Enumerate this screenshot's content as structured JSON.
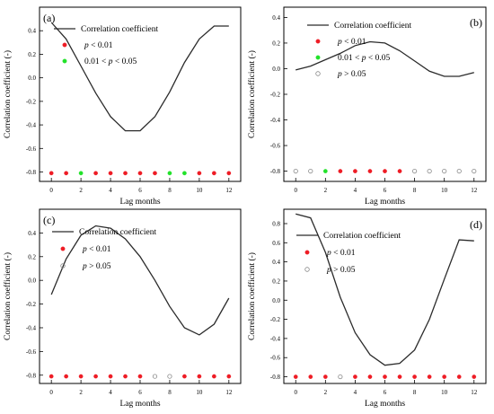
{
  "chart_data": [
    {
      "panel_label": "(a)",
      "type": "line",
      "xlabel": "Lag months",
      "ylabel": "Correlation coefficient (-)",
      "xlim": [
        -0.8,
        12.8
      ],
      "ylim": [
        -0.88,
        0.6
      ],
      "xticks": [
        0,
        2,
        4,
        6,
        8,
        10,
        12
      ],
      "yticks": [
        -0.8,
        -0.6,
        -0.4,
        -0.2,
        0.0,
        0.2,
        0.4
      ],
      "yticklabels": [
        "-0.8",
        "-0.6",
        "-0.4",
        "-0.2",
        "0.0",
        "0.2",
        "0.4"
      ],
      "legend_position": "top",
      "legend": [
        {
          "type": "line",
          "prefix": "",
          "italic": "",
          "suffix": "Correlation coefficient"
        },
        {
          "type": "marker",
          "color": "#ee1c25",
          "filled": true,
          "prefix": "",
          "italic": "p",
          "suffix": " < 0.01"
        },
        {
          "type": "marker",
          "color": "#22e22a",
          "filled": true,
          "prefix": "0.01 < ",
          "italic": "p",
          "suffix": " < 0.05"
        }
      ],
      "x": [
        0,
        1,
        2,
        3,
        4,
        5,
        6,
        7,
        8,
        9,
        10,
        11,
        12
      ],
      "correlation": [
        0.47,
        0.33,
        0.1,
        -0.13,
        -0.33,
        -0.45,
        -0.45,
        -0.33,
        -0.12,
        0.13,
        0.33,
        0.44,
        0.44
      ],
      "significance_y": -0.81,
      "significance": [
        "p<0.01",
        "p<0.01",
        "0.01<p<0.05",
        "p<0.01",
        "p<0.01",
        "p<0.01",
        "p<0.01",
        "p<0.01",
        "0.01<p<0.05",
        "0.01<p<0.05",
        "p<0.01",
        "p<0.01",
        "p<0.01"
      ]
    },
    {
      "panel_label": "(b)",
      "type": "line",
      "xlabel": "Lag months",
      "ylabel": "Correlation coefficient (-)",
      "xlim": [
        -0.8,
        12.8
      ],
      "ylim": [
        -0.88,
        0.48
      ],
      "xticks": [
        0,
        2,
        4,
        6,
        8,
        10,
        12
      ],
      "yticks": [
        -0.8,
        -0.6,
        -0.4,
        -0.2,
        0.0,
        0.2,
        0.4
      ],
      "yticklabels": [
        "-0.8",
        "-0.6",
        "-0.4",
        "-0.2",
        "0.0",
        "0.2",
        "0.4"
      ],
      "legend_position": "top",
      "legend": [
        {
          "type": "line",
          "prefix": "",
          "italic": "",
          "suffix": "Correlation coefficient"
        },
        {
          "type": "marker",
          "color": "#ee1c25",
          "filled": true,
          "prefix": "",
          "italic": "p",
          "suffix": " < 0.01"
        },
        {
          "type": "marker",
          "color": "#22e22a",
          "filled": true,
          "prefix": "0.01 < ",
          "italic": "p",
          "suffix": " < 0.05"
        },
        {
          "type": "marker",
          "color": "#888888",
          "filled": false,
          "prefix": "",
          "italic": "p",
          "suffix": " > 0.05"
        }
      ],
      "x": [
        0,
        1,
        2,
        3,
        4,
        5,
        6,
        7,
        8,
        9,
        10,
        11,
        12
      ],
      "correlation": [
        -0.01,
        0.02,
        0.07,
        0.12,
        0.18,
        0.21,
        0.2,
        0.14,
        0.06,
        -0.02,
        -0.06,
        -0.06,
        -0.03
      ],
      "significance_y": -0.8,
      "significance": [
        "p>0.05",
        "p>0.05",
        "0.01<p<0.05",
        "p<0.01",
        "p<0.01",
        "p<0.01",
        "p<0.01",
        "p<0.01",
        "p>0.05",
        "p>0.05",
        "p>0.05",
        "p>0.05",
        "p>0.05"
      ]
    },
    {
      "panel_label": "(c)",
      "type": "line",
      "xlabel": "Lag months",
      "ylabel": "Correlation coefficient (-)",
      "xlim": [
        -0.8,
        12.8
      ],
      "ylim": [
        -0.87,
        0.6
      ],
      "xticks": [
        0,
        2,
        4,
        6,
        8,
        10,
        12
      ],
      "yticks": [
        -0.8,
        -0.6,
        -0.4,
        -0.2,
        0.0,
        0.2,
        0.4
      ],
      "yticklabels": [
        "-0.8",
        "-0.6",
        "-0.4",
        "-0.2",
        "0.0",
        "0.2",
        "0.4"
      ],
      "legend_position": "top",
      "legend": [
        {
          "type": "line",
          "prefix": "",
          "italic": "",
          "suffix": "Correlation coefficient"
        },
        {
          "type": "marker",
          "color": "#ee1c25",
          "filled": true,
          "prefix": "",
          "italic": "p",
          "suffix": " < 0.01"
        },
        {
          "type": "marker",
          "color": "#888888",
          "filled": false,
          "prefix": "",
          "italic": "p",
          "suffix": " > 0.05"
        }
      ],
      "x": [
        0,
        1,
        2,
        3,
        4,
        5,
        6,
        7,
        8,
        9,
        10,
        11,
        12
      ],
      "correlation": [
        -0.12,
        0.18,
        0.38,
        0.46,
        0.44,
        0.35,
        0.2,
        0.0,
        -0.22,
        -0.4,
        -0.46,
        -0.37,
        -0.15
      ],
      "significance_y": -0.81,
      "significance": [
        "p<0.01",
        "p<0.01",
        "p<0.01",
        "p<0.01",
        "p<0.01",
        "p<0.01",
        "p<0.01",
        "p>0.05",
        "p>0.05",
        "p<0.01",
        "p<0.01",
        "p<0.01",
        "p<0.01"
      ]
    },
    {
      "panel_label": "(d)",
      "type": "line",
      "xlabel": "Lag months",
      "ylabel": "Correlation coefficient (-)",
      "xlim": [
        -0.8,
        12.8
      ],
      "ylim": [
        -0.87,
        0.95
      ],
      "xticks": [
        0,
        2,
        4,
        6,
        8,
        10,
        12
      ],
      "yticks": [
        -0.8,
        -0.6,
        -0.4,
        -0.2,
        0.0,
        0.2,
        0.4,
        0.6,
        0.8
      ],
      "yticklabels": [
        "-0.8",
        "-0.6",
        "-0.4",
        "-0.2",
        "0.0",
        "0.2",
        "0.4",
        "0.6",
        "0.8"
      ],
      "legend_position": "top",
      "legend": [
        {
          "type": "line",
          "prefix": "",
          "italic": "",
          "suffix": "Correlation coefficient"
        },
        {
          "type": "marker",
          "color": "#ee1c25",
          "filled": true,
          "prefix": "",
          "italic": "p",
          "suffix": " < 0.01"
        },
        {
          "type": "marker",
          "color": "#888888",
          "filled": false,
          "prefix": "",
          "italic": "p",
          "suffix": " > 0.05"
        }
      ],
      "x": [
        0,
        1,
        2,
        3,
        4,
        5,
        6,
        7,
        8,
        9,
        10,
        11,
        12
      ],
      "correlation": [
        0.9,
        0.86,
        0.5,
        0.03,
        -0.34,
        -0.57,
        -0.68,
        -0.66,
        -0.52,
        -0.2,
        0.22,
        0.63,
        0.62
      ],
      "significance_y": -0.8,
      "significance": [
        "p<0.01",
        "p<0.01",
        "p<0.01",
        "p>0.05",
        "p<0.01",
        "p<0.01",
        "p<0.01",
        "p<0.01",
        "p<0.01",
        "p<0.01",
        "p<0.01",
        "p<0.01",
        "p<0.01"
      ]
    }
  ],
  "significance_styles": {
    "p<0.01": {
      "color": "#ee1c25",
      "filled": true
    },
    "0.01<p<0.05": {
      "color": "#22e22a",
      "filled": true
    },
    "p>0.05": {
      "color": "#888888",
      "filled": false
    }
  }
}
